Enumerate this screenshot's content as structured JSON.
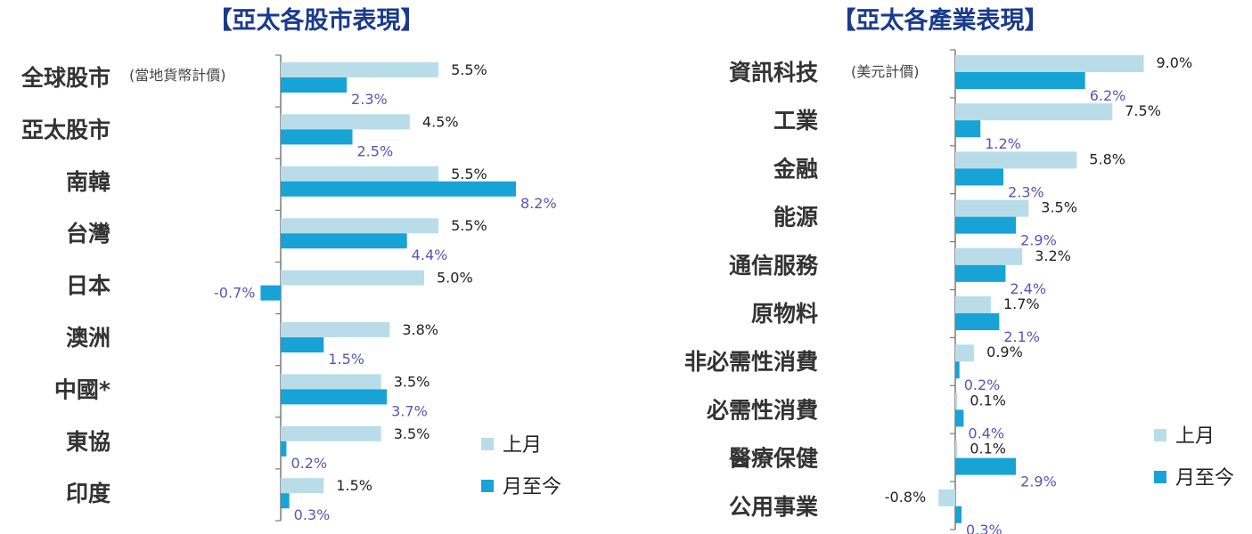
{
  "colors": {
    "prev": "#b8dde9",
    "mtd": "#17a3d6",
    "title": "#1a3a8c",
    "mtd_label": "#5a55b5"
  },
  "chart_data": [
    {
      "type": "bar",
      "orientation": "horizontal",
      "title": "【亞太各股市表現】",
      "note": "(當地貨幣計價)",
      "categories": [
        "全球股市",
        "亞太股市",
        "南韓",
        "台灣",
        "日本",
        "澳洲",
        "中國*",
        "東協",
        "印度"
      ],
      "series": [
        {
          "name": "上月",
          "values": [
            5.5,
            4.5,
            5.5,
            5.5,
            5.0,
            3.8,
            3.5,
            3.5,
            1.5
          ],
          "labels": [
            "5.5%",
            "4.5%",
            "5.5%",
            "5.5%",
            "5.0%",
            "3.8%",
            "3.5%",
            "3.5%",
            "1.5%"
          ]
        },
        {
          "name": "月至今",
          "values": [
            2.3,
            2.5,
            8.2,
            4.4,
            -0.7,
            1.5,
            3.7,
            0.2,
            0.3
          ],
          "labels": [
            "2.3%",
            "2.5%",
            "8.2%",
            "4.4%",
            "-0.7%",
            "1.5%",
            "3.7%",
            "0.2%",
            "0.3%"
          ]
        }
      ],
      "legend": [
        "上月",
        "月至今"
      ],
      "legend_position": "bottom-right",
      "grid": false
    },
    {
      "type": "bar",
      "orientation": "horizontal",
      "title": "【亞太各產業表現】",
      "note": "(美元計價)",
      "categories": [
        "資訊科技",
        "工業",
        "金融",
        "能源",
        "通信服務",
        "原物料",
        "非必需性消費",
        "必需性消費",
        "醫療保健",
        "公用事業"
      ],
      "series": [
        {
          "name": "上月",
          "values": [
            9.0,
            7.5,
            5.8,
            3.5,
            3.2,
            1.7,
            0.9,
            0.1,
            0.1,
            -0.8
          ],
          "labels": [
            "9.0%",
            "7.5%",
            "5.8%",
            "3.5%",
            "3.2%",
            "1.7%",
            "0.9%",
            "0.1%",
            "0.1%",
            "-0.8%"
          ]
        },
        {
          "name": "月至今",
          "values": [
            6.2,
            1.2,
            2.3,
            2.9,
            2.4,
            2.1,
            0.2,
            0.4,
            2.9,
            0.3
          ],
          "labels": [
            "6.2%",
            "1.2%",
            "2.3%",
            "2.9%",
            "2.4%",
            "2.1%",
            "0.2%",
            "0.4%",
            "2.9%",
            "0.3%"
          ]
        }
      ],
      "legend": [
        "上月",
        "月至今"
      ],
      "legend_position": "bottom-right",
      "grid": false
    }
  ]
}
